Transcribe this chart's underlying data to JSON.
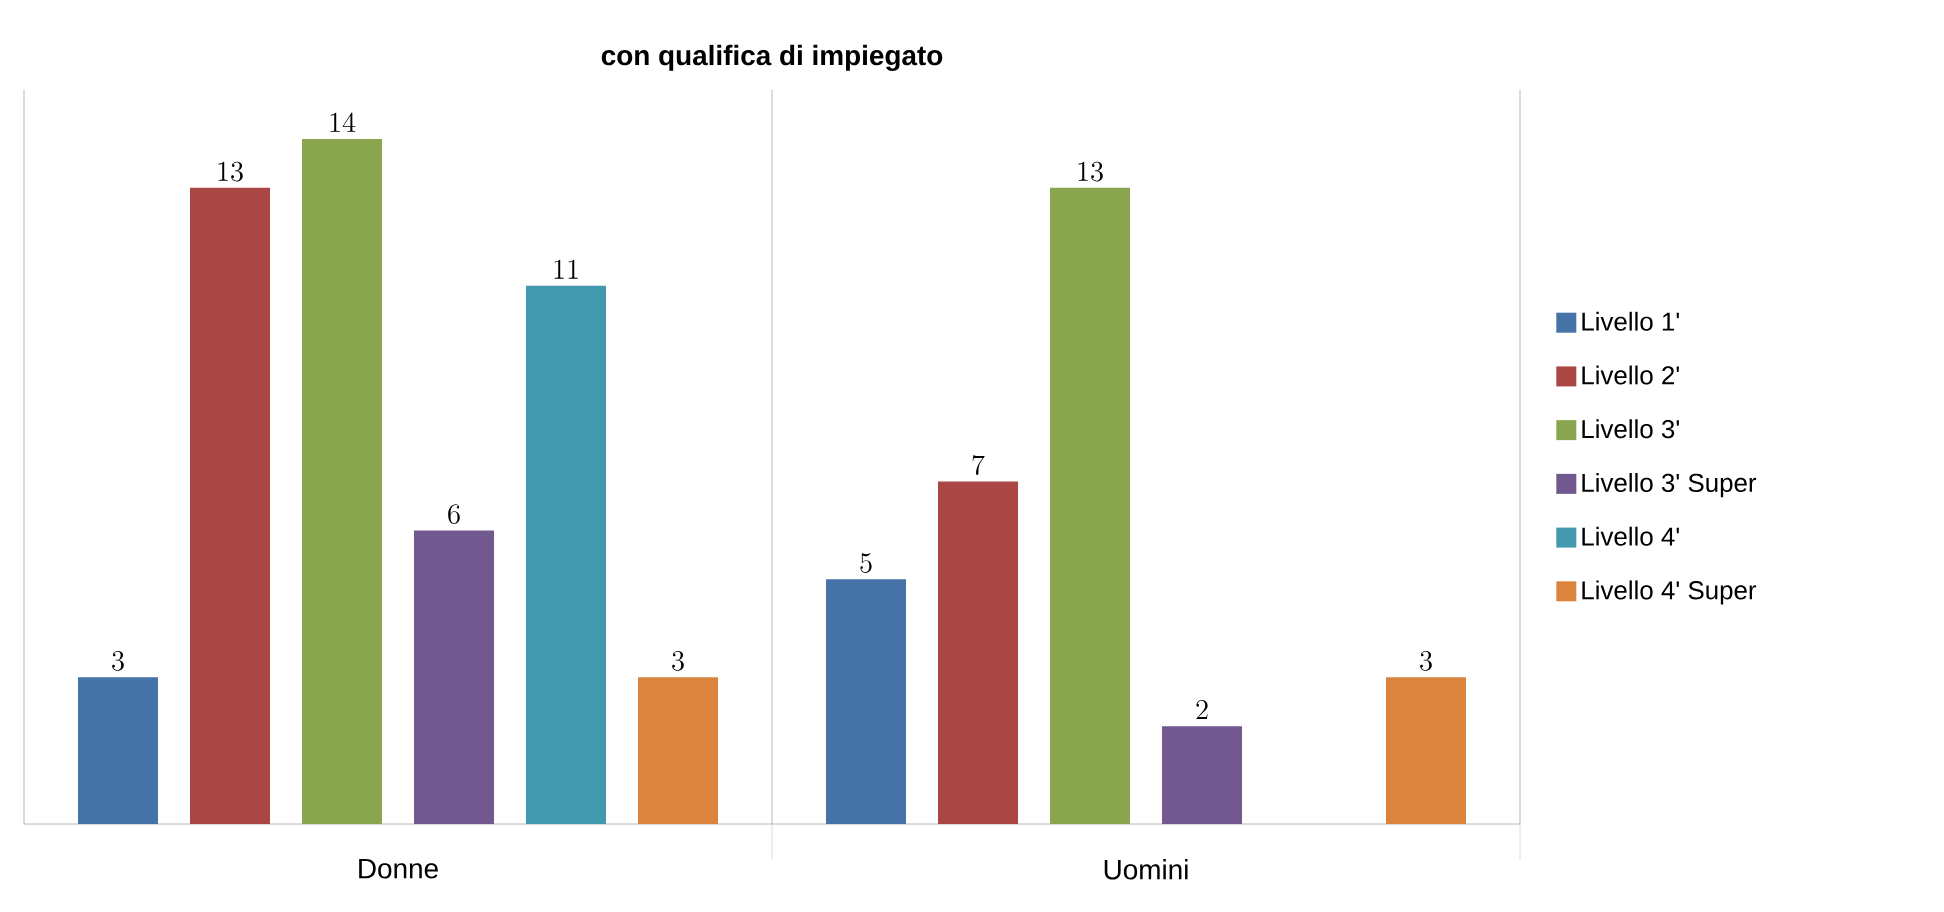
{
  "chart_data": {
    "type": "bar",
    "title": "con qualifica di impiegato",
    "categories": [
      "Donne",
      "Uomini"
    ],
    "series": [
      {
        "name": "Livello 1'",
        "color": "#4572a7",
        "values": [
          3,
          5
        ]
      },
      {
        "name": "Livello 2'",
        "color": "#aa4643",
        "values": [
          13,
          7
        ]
      },
      {
        "name": "Livello 3'",
        "color": "#89a54e",
        "values": [
          14,
          13
        ]
      },
      {
        "name": "Livello 3' Super",
        "color": "#71588f",
        "values": [
          6,
          2
        ]
      },
      {
        "name": "Livello 4'",
        "color": "#4198af",
        "values": [
          11,
          null
        ]
      },
      {
        "name": "Livello 4' Super",
        "color": "#db843d",
        "values": [
          3,
          3
        ]
      }
    ],
    "ylim": [
      0,
      15
    ],
    "data_labels": true,
    "legend": "right",
    "grid": "x",
    "tick_labels": "x"
  }
}
